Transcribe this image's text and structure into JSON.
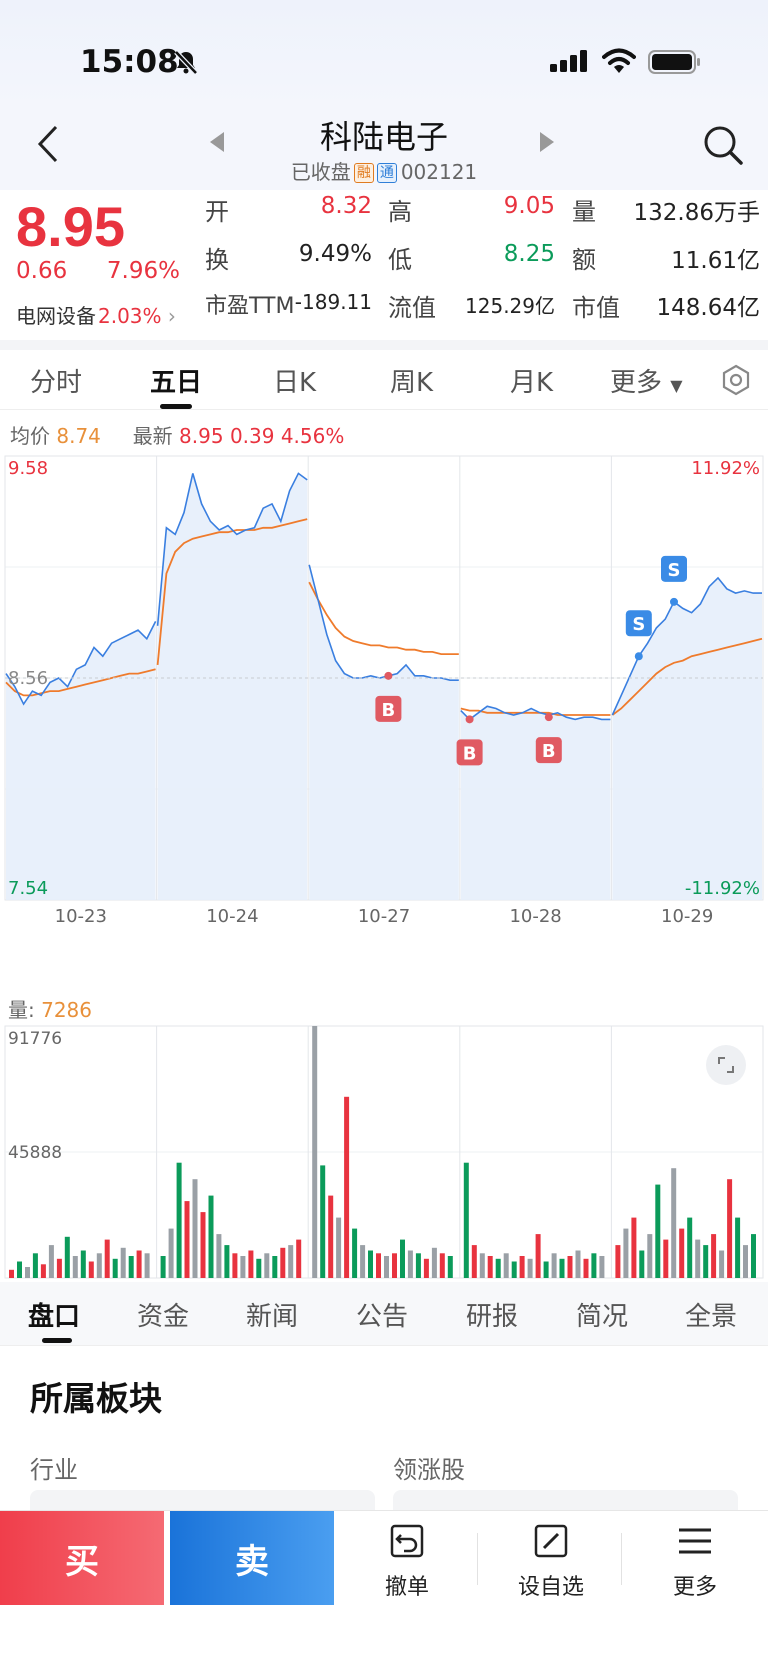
{
  "status": {
    "time": "15:08"
  },
  "header": {
    "title": "科陆电子",
    "status_text": "已收盘",
    "tag_rong": "融",
    "tag_tong": "通",
    "code": "002121"
  },
  "quote": {
    "price": "8.95",
    "change": "0.66",
    "change_pct": "7.96%",
    "sector_name": "电网设备",
    "sector_pct": "2.03%",
    "stats": {
      "open_label": "开",
      "open": "8.32",
      "high_label": "高",
      "high": "9.05",
      "volume_label": "量",
      "volume": "132.86万手",
      "turnover_label": "换",
      "turnover": "9.49%",
      "low_label": "低",
      "low": "8.25",
      "amount_label": "额",
      "amount": "11.61亿",
      "pe_label": "市盈TTM",
      "pe": "-189.11",
      "float_cap_label": "流值",
      "float_cap": "125.29亿",
      "mkt_cap_label": "市值",
      "mkt_cap": "148.64亿"
    }
  },
  "tabs": [
    "分时",
    "五日",
    "日K",
    "周K",
    "月K",
    "更多"
  ],
  "active_tab": "五日",
  "chart_info": {
    "avg_label": "均价",
    "avg": "8.74",
    "latest_label": "最新",
    "latest": "8.95",
    "latest_change": "0.39",
    "latest_pct": "4.56%"
  },
  "chart_data": {
    "type": "line",
    "title": "",
    "x_labels": [
      "10-23",
      "10-24",
      "10-27",
      "10-28",
      "10-29"
    ],
    "y_left_ticks": [
      "9.58",
      "8.56",
      "7.54"
    ],
    "y_right_ticks": [
      "11.92%",
      "-11.92%"
    ],
    "ylim": [
      7.54,
      9.58
    ],
    "reference_price": 8.56,
    "series": [
      {
        "name": "",
        "color": "#3a7fe0",
        "days": [
          [
            8.58,
            8.52,
            8.44,
            8.5,
            8.48,
            8.54,
            8.56,
            8.52,
            8.6,
            8.62,
            8.7,
            8.66,
            8.72,
            8.74,
            8.76,
            8.78,
            8.74,
            8.82
          ],
          [
            8.8,
            9.25,
            9.22,
            9.32,
            9.5,
            9.36,
            9.28,
            9.24,
            9.26,
            9.22,
            9.24,
            9.25,
            9.34,
            9.36,
            9.28,
            9.42,
            9.5,
            9.47
          ],
          [
            9.08,
            8.92,
            8.76,
            8.64,
            8.58,
            8.56,
            8.56,
            8.57,
            8.56,
            8.57,
            8.58,
            8.62,
            8.57,
            8.57,
            8.56,
            8.56,
            8.55,
            8.55
          ],
          [
            8.41,
            8.37,
            8.4,
            8.43,
            8.42,
            8.4,
            8.39,
            8.4,
            8.42,
            8.4,
            8.39,
            8.4,
            8.38,
            8.37,
            8.38,
            8.38,
            8.37,
            8.37
          ],
          [
            8.39,
            8.48,
            8.57,
            8.66,
            8.72,
            8.79,
            8.83,
            8.91,
            8.88,
            8.86,
            8.9,
            8.98,
            9.02,
            8.97,
            8.95,
            8.96,
            8.95,
            8.95
          ]
        ]
      },
      {
        "name": "",
        "color": "#ef7b2c",
        "days": [
          [
            8.54,
            8.5,
            8.48,
            8.48,
            8.49,
            8.5,
            8.5,
            8.51,
            8.52,
            8.53,
            8.54,
            8.55,
            8.56,
            8.57,
            8.58,
            8.58,
            8.59,
            8.6
          ],
          [
            8.62,
            9.04,
            9.14,
            9.18,
            9.2,
            9.21,
            9.22,
            9.23,
            9.23,
            9.24,
            9.24,
            9.24,
            9.25,
            9.25,
            9.26,
            9.27,
            9.28,
            9.29
          ],
          [
            9.0,
            8.92,
            8.85,
            8.79,
            8.75,
            8.73,
            8.72,
            8.71,
            8.71,
            8.7,
            8.7,
            8.69,
            8.69,
            8.68,
            8.68,
            8.67,
            8.67,
            8.67
          ],
          [
            8.42,
            8.41,
            8.41,
            8.4,
            8.4,
            8.4,
            8.4,
            8.4,
            8.4,
            8.4,
            8.4,
            8.39,
            8.39,
            8.39,
            8.39,
            8.39,
            8.39,
            8.39
          ],
          [
            8.39,
            8.42,
            8.46,
            8.5,
            8.54,
            8.58,
            8.61,
            8.63,
            8.64,
            8.66,
            8.67,
            8.68,
            8.69,
            8.7,
            8.71,
            8.72,
            8.73,
            8.74
          ]
        ]
      }
    ],
    "markers": [
      {
        "label": "B",
        "day": 2,
        "idx": 9,
        "price": 8.57,
        "color": "#e05a62"
      },
      {
        "label": "B",
        "day": 3,
        "idx": 1,
        "price": 8.37,
        "color": "#e05a62"
      },
      {
        "label": "B",
        "day": 3,
        "idx": 10,
        "price": 8.38,
        "color": "#e05a62"
      },
      {
        "label": "S",
        "day": 4,
        "idx": 3,
        "price": 8.66,
        "color": "#3a8be6"
      },
      {
        "label": "S",
        "day": 4,
        "idx": 7,
        "price": 8.91,
        "color": "#3a8be6"
      }
    ]
  },
  "volume": {
    "label": "量:",
    "value": "7286",
    "max_tick": "91776",
    "mid_tick": "45888",
    "max": 91776,
    "days": [
      [
        3000,
        6000,
        4000,
        9000,
        5000,
        12000,
        7000,
        15000,
        8000,
        10000,
        6000,
        9000,
        14000,
        7000,
        11000,
        8000,
        10000,
        9000
      ],
      [
        8000,
        18000,
        42000,
        28000,
        36000,
        24000,
        30000,
        16000,
        12000,
        9000,
        8000,
        10000,
        7000,
        9000,
        8000,
        11000,
        12000,
        14000
      ],
      [
        91776,
        41000,
        30000,
        22000,
        66000,
        18000,
        12000,
        10000,
        9000,
        8000,
        9000,
        14000,
        10000,
        9000,
        7000,
        11000,
        9000,
        8000
      ],
      [
        42000,
        12000,
        9000,
        8000,
        7000,
        9000,
        6000,
        8000,
        7000,
        16000,
        6000,
        9000,
        7000,
        8000,
        10000,
        7000,
        9000,
        8000
      ],
      [
        12000,
        18000,
        22000,
        10000,
        16000,
        34000,
        14000,
        40000,
        18000,
        22000,
        14000,
        12000,
        16000,
        10000,
        36000,
        22000,
        12000,
        16000
      ]
    ]
  },
  "bottom_tabs": [
    "盘口",
    "资金",
    "新闻",
    "公告",
    "研报",
    "简况",
    "全景"
  ],
  "section": {
    "title": "所属板块",
    "industry_label": "行业",
    "leader_label": "领涨股"
  },
  "actions": {
    "buy": "买",
    "sell": "卖",
    "cancel": "撤单",
    "watchlist": "设自选",
    "more": "更多"
  }
}
